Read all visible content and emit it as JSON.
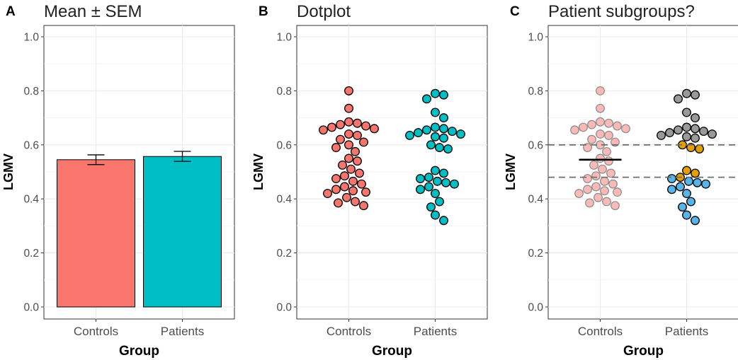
{
  "figure": {
    "y_ticks": [
      "0.0",
      "0.2",
      "0.4",
      "0.6",
      "0.8",
      "1.0"
    ],
    "panels": [
      {
        "tag": "A",
        "title": "Mean ± SEM",
        "xlabel": "Group",
        "ylabel": "LGMV",
        "categories": [
          "Controls",
          "Patients"
        ]
      },
      {
        "tag": "B",
        "title": "Dotplot",
        "xlabel": "Group",
        "ylabel": "LGMV",
        "categories": [
          "Controls",
          "Patients"
        ]
      },
      {
        "tag": "C",
        "title": "Patient subgroups?",
        "xlabel": "Group",
        "ylabel": "LGMV",
        "categories": [
          "Controls",
          "Patients"
        ]
      }
    ]
  },
  "chart_data": [
    {
      "type": "bar",
      "title": "Mean ± SEM",
      "xlabel": "Group",
      "ylabel": "LGMV",
      "ylim": [
        0,
        1.0
      ],
      "grid": true,
      "categories": [
        "Controls",
        "Patients"
      ],
      "values": [
        0.545,
        0.557
      ],
      "error_low": [
        0.527,
        0.539
      ],
      "error_high": [
        0.563,
        0.576
      ],
      "colors": [
        "#F8766D",
        "#00BFC4"
      ]
    },
    {
      "type": "scatter",
      "title": "Dotplot",
      "xlabel": "Group",
      "ylabel": "LGMV",
      "ylim": [
        0,
        1.0
      ],
      "grid": true,
      "categories": [
        "Controls",
        "Patients"
      ],
      "colors": [
        "#F8766D",
        "#00BFC4"
      ],
      "series": [
        {
          "values": [
            0.8,
            0.735,
            0.685,
            0.68,
            0.675,
            0.67,
            0.665,
            0.66,
            0.655,
            0.64,
            0.635,
            0.62,
            0.61,
            0.6,
            0.59,
            0.575,
            0.55,
            0.54,
            0.525,
            0.51,
            0.495,
            0.485,
            0.475,
            0.465,
            0.455,
            0.445,
            0.435,
            0.43,
            0.425,
            0.42,
            0.405,
            0.39,
            0.385,
            0.375
          ]
        },
        {
          "values": [
            0.79,
            0.785,
            0.77,
            0.72,
            0.7,
            0.665,
            0.66,
            0.655,
            0.65,
            0.645,
            0.64,
            0.635,
            0.63,
            0.625,
            0.6,
            0.59,
            0.585,
            0.505,
            0.495,
            0.48,
            0.475,
            0.465,
            0.46,
            0.455,
            0.445,
            0.435,
            0.42,
            0.39,
            0.37,
            0.34,
            0.32
          ]
        }
      ]
    },
    {
      "type": "scatter",
      "title": "Patient subgroups?",
      "xlabel": "Group",
      "ylabel": "LGMV",
      "ylim": [
        0,
        1.0
      ],
      "grid": true,
      "categories": [
        "Controls",
        "Patients"
      ],
      "controls_mean": 0.545,
      "reference_lines": [
        0.6,
        0.48
      ],
      "colors": {
        "controls": "#F8766D",
        "high": "#999999",
        "mid": "#E69F00",
        "low": "#56B4E9"
      },
      "series": [
        {
          "values": [
            0.8,
            0.735,
            0.685,
            0.68,
            0.675,
            0.67,
            0.665,
            0.66,
            0.655,
            0.64,
            0.635,
            0.62,
            0.61,
            0.6,
            0.59,
            0.575,
            0.55,
            0.54,
            0.525,
            0.51,
            0.495,
            0.485,
            0.475,
            0.465,
            0.455,
            0.445,
            0.435,
            0.43,
            0.425,
            0.42,
            0.405,
            0.39,
            0.385,
            0.375
          ]
        },
        {
          "values": [
            0.79,
            0.785,
            0.77,
            0.72,
            0.7,
            0.665,
            0.66,
            0.655,
            0.65,
            0.645,
            0.64,
            0.635,
            0.63,
            0.625
          ]
        },
        {
          "values": [
            0.6,
            0.59,
            0.585,
            0.505,
            0.495,
            0.48
          ]
        },
        {
          "values": [
            0.475,
            0.465,
            0.46,
            0.455,
            0.445,
            0.435,
            0.42,
            0.39,
            0.37,
            0.34,
            0.32
          ]
        }
      ]
    }
  ]
}
